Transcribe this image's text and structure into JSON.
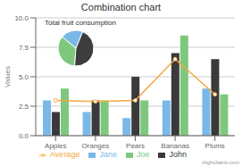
{
  "chart_data": [
    {
      "type": "bar",
      "title": "Combination chart",
      "ylabel": "Values",
      "categories": [
        "Apples",
        "Oranges",
        "Pears",
        "Bananas",
        "Plums"
      ],
      "series": [
        {
          "name": "Jane",
          "type": "bar",
          "color": "#7ab8e8",
          "values": [
            3.0,
            2.0,
            1.5,
            3.0,
            4.0
          ]
        },
        {
          "name": "John",
          "type": "bar",
          "color": "#3a3a3a",
          "values": [
            2.0,
            3.0,
            5.0,
            7.0,
            6.5
          ]
        },
        {
          "name": "Joe",
          "type": "bar",
          "color": "#7ec87e",
          "values": [
            4.0,
            3.0,
            3.0,
            8.5,
            3.5
          ]
        },
        {
          "name": "Average",
          "type": "line",
          "color": "#f5a742",
          "marker": "circle",
          "values": [
            3.0,
            2.9,
            3.0,
            6.5,
            3.5
          ]
        }
      ],
      "ylim": [
        0,
        10
      ],
      "yticks": [
        {
          "value": 0,
          "label": "0.0"
        },
        2.5,
        {
          "value": 5,
          "label": "5.0"
        },
        {
          "value": 7.5,
          "label": "7.5"
        },
        {
          "value": 10,
          "label": "10.0"
        }
      ],
      "grid": true,
      "legend": "bottom",
      "annotations": [
        "Highcharts.com"
      ]
    },
    {
      "type": "pie",
      "title": "Total fruit consumption",
      "values": [
        35,
        45,
        20
      ],
      "colors": [
        "#7ec87e",
        "#3d3d3d",
        "#7ab8e8"
      ]
    }
  ]
}
